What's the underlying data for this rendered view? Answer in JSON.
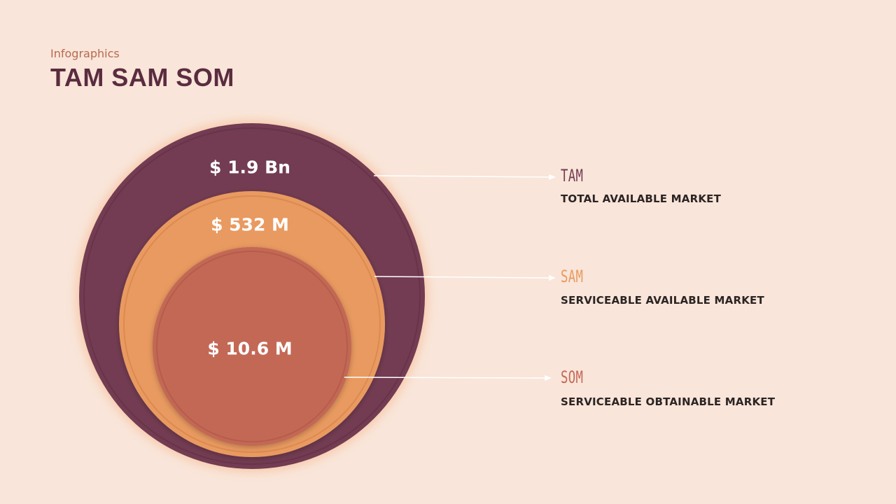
{
  "header": {
    "subtitle": "Infographics",
    "title": "TAM SAM SOM"
  },
  "circles": [
    {
      "key": "tam",
      "value": "$ 1.9 Bn",
      "color": "#733c52"
    },
    {
      "key": "sam",
      "value": "$ 532 M",
      "color": "#e99a60"
    },
    {
      "key": "som",
      "value": "$ 10.6 M",
      "color": "#c46856"
    }
  ],
  "legend": [
    {
      "key": "tam",
      "abbr": "TAM",
      "desc": "TOTAL AVAILABLE MARKET",
      "color": "#733c52"
    },
    {
      "key": "sam",
      "abbr": "SAM",
      "desc": "SERVICEABLE AVAILABLE MARKET",
      "color": "#e99a60"
    },
    {
      "key": "som",
      "abbr": "SOM",
      "desc": "SERVICEABLE OBTAINABLE MARKET",
      "color": "#c46856"
    }
  ]
}
